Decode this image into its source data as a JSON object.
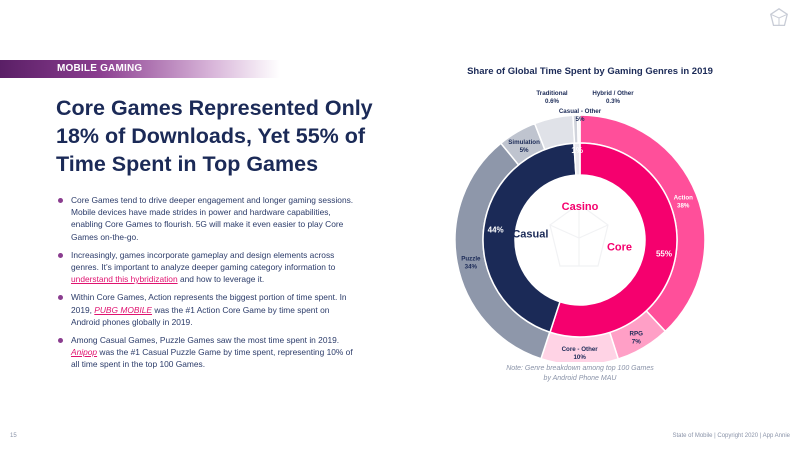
{
  "section_tag": "MOBILE GAMING",
  "headline_lines": [
    "Core Games Represented Only",
    "18% of Downloads, Yet 55% of",
    "Time Spent in Top Games"
  ],
  "bullets": [
    {
      "pre": "Core Games tend to drive deeper engagement and longer gaming sessions. Mobile devices have made strides in power and hardware capabilities, enabling Core Games to flourish. 5G will make it even easier to play Core Games on-the-go."
    },
    {
      "pre": "Increasingly, games incorporate gameplay and design elements across genres. It’s important to analyze deeper gaming category information to",
      "link": " understand this hybridization",
      "post": " and how to leverage it."
    },
    {
      "pre": "Within Core Games, Action represents the biggest portion of time spent. In 2019, ",
      "link": "PUBG MOBILE",
      "post": " was the #1 Action Core Game by time spent on Android phones globally in 2019."
    },
    {
      "pre": "Among Casual Games, Puzzle Games saw the most time spent in 2019. ",
      "link": "Anipop",
      "post": " was the #1 Casual Puzzle Game by time spent, representing 10% of all time spent in the top 100 Games."
    }
  ],
  "note_lines": [
    "Note: Genre breakdown among top 100 Games",
    "by Android Phone MAU"
  ],
  "footer": {
    "page_number": "15",
    "text": "State of Mobile  |  Copyright 2020  |  App Annie"
  },
  "colors": {
    "core": "#f5006e",
    "casual": "#1b2a57",
    "casino": "#e9e9ee",
    "action": "#ff4f9a",
    "rpg": "#ff9fc6",
    "core_other": "#ffd3e5",
    "puzzle": "#8e97aa",
    "simulation": "#bfc4cf",
    "casual_other": "#e0e2e8",
    "traditional": "#d0d3db",
    "hybrid_other": "#f2f2f4"
  },
  "chart_data": {
    "type": "pie",
    "title": "Share of Global Time Spent by Gaming Genres in 2019",
    "inner_ring": [
      {
        "name": "Core",
        "value": 55,
        "label": "55%"
      },
      {
        "name": "Casual",
        "value": 44,
        "label": "44%"
      },
      {
        "name": "Casino",
        "value": 1,
        "label": "1%"
      }
    ],
    "outer_ring": [
      {
        "name": "Action",
        "value": 38,
        "label": "38%",
        "parent": "Core"
      },
      {
        "name": "RPG",
        "value": 7,
        "label": "7%",
        "parent": "Core"
      },
      {
        "name": "Core - Other",
        "value": 10,
        "label": "10%",
        "parent": "Core"
      },
      {
        "name": "Puzzle",
        "value": 34,
        "label": "34%",
        "parent": "Casual"
      },
      {
        "name": "Simulation",
        "value": 5,
        "label": "5%",
        "parent": "Casual"
      },
      {
        "name": "Casual - Other",
        "value": 5,
        "label": "5%",
        "parent": "Casual"
      },
      {
        "name": "Traditional",
        "value": 0.6,
        "label": "0.6%",
        "parent": "Casino"
      },
      {
        "name": "Hybrid / Other",
        "value": 0.3,
        "label": "0.3%",
        "parent": "Casino"
      }
    ]
  }
}
